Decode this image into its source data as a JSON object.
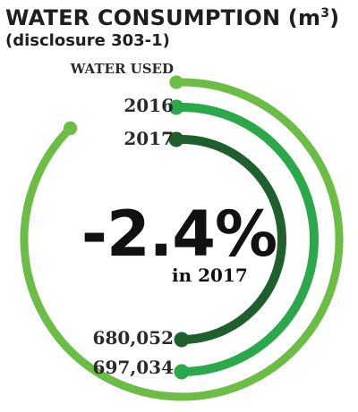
{
  "header": {
    "title": "WATER CONSUMPTION (m",
    "title_sup": "3",
    "title_close": ")",
    "subtitle": "(disclosure 303-1)"
  },
  "center": {
    "value": "-2.4%",
    "caption": "in 2017"
  },
  "colors": {
    "water_used": "#6cbd45",
    "year_2016": "#2ba84a",
    "year_2017": "#1f5e2d"
  },
  "chart_data": {
    "type": "radial-bar",
    "unit": "m3",
    "series": [
      {
        "name": "WATER USED",
        "value": null,
        "fraction": 0.92
      },
      {
        "name": "2016",
        "value": 697034,
        "value_label": "697,034",
        "fraction": 0.5
      },
      {
        "name": "2017",
        "value": 680052,
        "value_label": "680,052",
        "fraction": 0.5
      }
    ],
    "change_label": "-2.4%",
    "change_caption": "in 2017"
  }
}
